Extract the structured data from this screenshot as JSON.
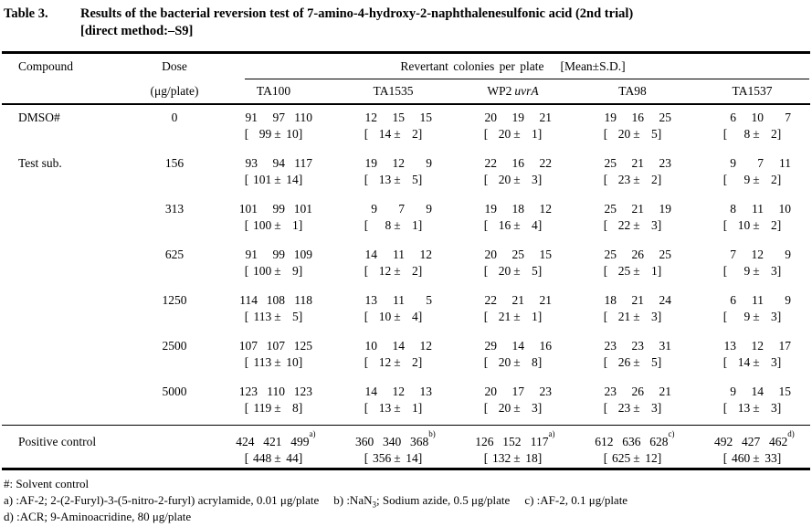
{
  "title": {
    "label": "Table 3.",
    "line1": "Results of the bacterial reversion test of 7-amino-4-hydroxy-2-naphthalenesulfonic acid (2nd trial)",
    "line2": "[direct method:–S9]"
  },
  "format": {
    "open": "[",
    "close": "]",
    "pm": "±"
  },
  "header": {
    "compound": "Compound",
    "dose": "Dose",
    "dose_unit": "(μg/plate)",
    "span_label": "Revertant colonies per plate",
    "mean_label": "[Mean±S.D.]",
    "strains": [
      {
        "name": "TA100",
        "italic": ""
      },
      {
        "name": "TA1535",
        "italic": ""
      },
      {
        "name": "WP2",
        "italic": "uvrA"
      },
      {
        "name": "TA98",
        "italic": ""
      },
      {
        "name": "TA1537",
        "italic": ""
      }
    ]
  },
  "rows": [
    {
      "compound": "DMSO#",
      "dose": "0",
      "cells": [
        {
          "v1": "91",
          "v2": "97",
          "v3": "110",
          "sup": "",
          "mean": "99",
          "sd": "10"
        },
        {
          "v1": "12",
          "v2": "15",
          "v3": "15",
          "sup": "",
          "mean": "14",
          "sd": "2"
        },
        {
          "v1": "20",
          "v2": "19",
          "v3": "21",
          "sup": "",
          "mean": "20",
          "sd": "1"
        },
        {
          "v1": "19",
          "v2": "16",
          "v3": "25",
          "sup": "",
          "mean": "20",
          "sd": "5"
        },
        {
          "v1": "6",
          "v2": "10",
          "v3": "7",
          "sup": "",
          "mean": "8",
          "sd": "2"
        }
      ]
    },
    {
      "compound": "Test sub.",
      "dose": "156",
      "cells": [
        {
          "v1": "93",
          "v2": "94",
          "v3": "117",
          "sup": "",
          "mean": "101",
          "sd": "14"
        },
        {
          "v1": "19",
          "v2": "12",
          "v3": "9",
          "sup": "",
          "mean": "13",
          "sd": "5"
        },
        {
          "v1": "22",
          "v2": "16",
          "v3": "22",
          "sup": "",
          "mean": "20",
          "sd": "3"
        },
        {
          "v1": "25",
          "v2": "21",
          "v3": "23",
          "sup": "",
          "mean": "23",
          "sd": "2"
        },
        {
          "v1": "9",
          "v2": "7",
          "v3": "11",
          "sup": "",
          "mean": "9",
          "sd": "2"
        }
      ]
    },
    {
      "compound": "",
      "dose": "313",
      "cells": [
        {
          "v1": "101",
          "v2": "99",
          "v3": "101",
          "sup": "",
          "mean": "100",
          "sd": "1"
        },
        {
          "v1": "9",
          "v2": "7",
          "v3": "9",
          "sup": "",
          "mean": "8",
          "sd": "1"
        },
        {
          "v1": "19",
          "v2": "18",
          "v3": "12",
          "sup": "",
          "mean": "16",
          "sd": "4"
        },
        {
          "v1": "25",
          "v2": "21",
          "v3": "19",
          "sup": "",
          "mean": "22",
          "sd": "3"
        },
        {
          "v1": "8",
          "v2": "11",
          "v3": "10",
          "sup": "",
          "mean": "10",
          "sd": "2"
        }
      ]
    },
    {
      "compound": "",
      "dose": "625",
      "cells": [
        {
          "v1": "91",
          "v2": "99",
          "v3": "109",
          "sup": "",
          "mean": "100",
          "sd": "9"
        },
        {
          "v1": "14",
          "v2": "11",
          "v3": "12",
          "sup": "",
          "mean": "12",
          "sd": "2"
        },
        {
          "v1": "20",
          "v2": "25",
          "v3": "15",
          "sup": "",
          "mean": "20",
          "sd": "5"
        },
        {
          "v1": "25",
          "v2": "26",
          "v3": "25",
          "sup": "",
          "mean": "25",
          "sd": "1"
        },
        {
          "v1": "7",
          "v2": "12",
          "v3": "9",
          "sup": "",
          "mean": "9",
          "sd": "3"
        }
      ]
    },
    {
      "compound": "",
      "dose": "1250",
      "cells": [
        {
          "v1": "114",
          "v2": "108",
          "v3": "118",
          "sup": "",
          "mean": "113",
          "sd": "5"
        },
        {
          "v1": "13",
          "v2": "11",
          "v3": "5",
          "sup": "",
          "mean": "10",
          "sd": "4"
        },
        {
          "v1": "22",
          "v2": "21",
          "v3": "21",
          "sup": "",
          "mean": "21",
          "sd": "1"
        },
        {
          "v1": "18",
          "v2": "21",
          "v3": "24",
          "sup": "",
          "mean": "21",
          "sd": "3"
        },
        {
          "v1": "6",
          "v2": "11",
          "v3": "9",
          "sup": "",
          "mean": "9",
          "sd": "3"
        }
      ]
    },
    {
      "compound": "",
      "dose": "2500",
      "cells": [
        {
          "v1": "107",
          "v2": "107",
          "v3": "125",
          "sup": "",
          "mean": "113",
          "sd": "10"
        },
        {
          "v1": "10",
          "v2": "14",
          "v3": "12",
          "sup": "",
          "mean": "12",
          "sd": "2"
        },
        {
          "v1": "29",
          "v2": "14",
          "v3": "16",
          "sup": "",
          "mean": "20",
          "sd": "8"
        },
        {
          "v1": "23",
          "v2": "23",
          "v3": "31",
          "sup": "",
          "mean": "26",
          "sd": "5"
        },
        {
          "v1": "13",
          "v2": "12",
          "v3": "17",
          "sup": "",
          "mean": "14",
          "sd": "3"
        }
      ]
    },
    {
      "compound": "",
      "dose": "5000",
      "cells": [
        {
          "v1": "123",
          "v2": "110",
          "v3": "123",
          "sup": "",
          "mean": "119",
          "sd": "8"
        },
        {
          "v1": "14",
          "v2": "12",
          "v3": "13",
          "sup": "",
          "mean": "13",
          "sd": "1"
        },
        {
          "v1": "20",
          "v2": "17",
          "v3": "23",
          "sup": "",
          "mean": "20",
          "sd": "3"
        },
        {
          "v1": "23",
          "v2": "26",
          "v3": "21",
          "sup": "",
          "mean": "23",
          "sd": "3"
        },
        {
          "v1": "9",
          "v2": "14",
          "v3": "15",
          "sup": "",
          "mean": "13",
          "sd": "3"
        }
      ]
    }
  ],
  "positive_row": {
    "compound": "Positive control",
    "dose": "",
    "cells": [
      {
        "v1": "424",
        "v2": "421",
        "v3": "499",
        "sup": "a)",
        "mean": "448",
        "sd": "44"
      },
      {
        "v1": "360",
        "v2": "340",
        "v3": "368",
        "sup": "b)",
        "mean": "356",
        "sd": "14"
      },
      {
        "v1": "126",
        "v2": "152",
        "v3": "117",
        "sup": "a)",
        "mean": "132",
        "sd": "18"
      },
      {
        "v1": "612",
        "v2": "636",
        "v3": "628",
        "sup": "c)",
        "mean": "625",
        "sd": "12"
      },
      {
        "v1": "492",
        "v2": "427",
        "v3": "462",
        "sup": "d)",
        "mean": "460",
        "sd": "33"
      }
    ]
  },
  "footnotes": {
    "solvent": "#: Solvent control",
    "a": "a) :AF-2; 2-(2-Furyl)-3-(5-nitro-2-furyl) acrylamide, 0.01 μg/plate",
    "b_pre": "b) :NaN",
    "b_sub": "3",
    "b_post": "; Sodium azide, 0.5 μg/plate",
    "c": "c) :AF-2, 0.1 μg/plate",
    "d": "d) :ACR; 9-Aminoacridine, 80 μg/plate"
  }
}
